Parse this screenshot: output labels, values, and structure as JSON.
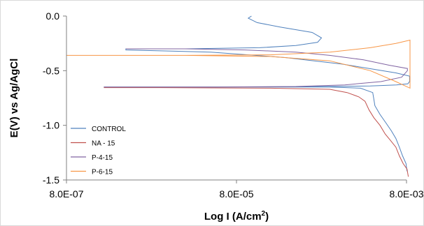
{
  "chart_data": {
    "type": "line",
    "title": "",
    "xlabel": "Log I (A/cm",
    "xlabel_sup": "2",
    "xlabel_end": ")",
    "ylabel": "E(V) vs Ag/AgCl",
    "x_scale": "log",
    "xlim": [
      8e-07,
      0.008
    ],
    "ylim": [
      -1.5,
      0.0
    ],
    "x_ticks": [
      8e-07,
      8e-05,
      0.008
    ],
    "x_tick_labels": [
      "8.0E-07",
      "8.0E-05",
      "8.0E-03"
    ],
    "y_ticks": [
      0.0,
      -0.5,
      -1.0,
      -1.5
    ],
    "y_tick_labels": [
      "0.0",
      "-0.5",
      "-1.0",
      "-1.5"
    ],
    "grid": false,
    "legend_position": "bottom-left",
    "series": [
      {
        "name": "CONTROL",
        "color": "#4f81bd",
        "points": [
          [
            0.00012,
            0.0
          ],
          [
            0.00011,
            -0.02
          ],
          [
            0.00014,
            -0.06
          ],
          [
            0.00026,
            -0.1
          ],
          [
            0.00062,
            -0.15
          ],
          [
            0.0008,
            -0.2
          ],
          [
            0.00072,
            -0.24
          ],
          [
            0.0004,
            -0.27
          ],
          [
            0.00015,
            -0.29
          ],
          [
            2e-05,
            -0.3
          ],
          [
            4e-06,
            -0.3
          ],
          [
            4e-06,
            -0.31
          ],
          [
            4e-05,
            -0.33
          ],
          [
            0.0003,
            -0.38
          ],
          [
            0.0014,
            -0.44
          ],
          [
            0.006,
            -0.52
          ],
          [
            0.0087,
            -0.55
          ],
          [
            0.0087,
            -0.6
          ],
          [
            0.0083,
            -0.62
          ],
          [
            0.0061,
            -0.63
          ],
          [
            0.003,
            -0.64
          ],
          [
            0.001,
            -0.645
          ],
          [
            0.0001,
            -0.65
          ],
          [
            1e-05,
            -0.65
          ],
          [
            2.2e-06,
            -0.65
          ],
          [
            1e-05,
            -0.65
          ],
          [
            0.0002,
            -0.65
          ],
          [
            0.001,
            -0.65
          ],
          [
            0.0023,
            -0.66
          ],
          [
            0.0032,
            -0.7
          ],
          [
            0.0033,
            -0.76
          ],
          [
            0.0034,
            -0.82
          ],
          [
            0.0039,
            -0.9
          ],
          [
            0.0046,
            -0.98
          ],
          [
            0.0053,
            -1.05
          ],
          [
            0.006,
            -1.12
          ],
          [
            0.0066,
            -1.2
          ],
          [
            0.0072,
            -1.28
          ],
          [
            0.0079,
            -1.35
          ],
          [
            0.0081,
            -1.42
          ]
        ]
      },
      {
        "name": "NA - 15",
        "color": "#c0504d",
        "points": [
          [
            2.2e-06,
            -0.655
          ],
          [
            1e-05,
            -0.655
          ],
          [
            0.0002,
            -0.66
          ],
          [
            0.001,
            -0.67
          ],
          [
            0.0016,
            -0.7
          ],
          [
            0.0022,
            -0.74
          ],
          [
            0.0026,
            -0.78
          ],
          [
            0.0029,
            -0.86
          ],
          [
            0.0033,
            -0.93
          ],
          [
            0.0039,
            -1.0
          ],
          [
            0.0045,
            -1.08
          ],
          [
            0.0052,
            -1.14
          ],
          [
            0.006,
            -1.2
          ],
          [
            0.0066,
            -1.28
          ],
          [
            0.0073,
            -1.35
          ],
          [
            0.0081,
            -1.4
          ],
          [
            0.0084,
            -1.47
          ]
        ]
      },
      {
        "name": "P-4-15",
        "color": "#8064a2",
        "points": [
          [
            4e-06,
            -0.3
          ],
          [
            2e-05,
            -0.3
          ],
          [
            0.0001,
            -0.31
          ],
          [
            0.0004,
            -0.33
          ],
          [
            0.001,
            -0.36
          ],
          [
            0.0025,
            -0.4
          ],
          [
            0.005,
            -0.45
          ],
          [
            0.0082,
            -0.48
          ],
          [
            0.0082,
            -0.5
          ],
          [
            0.007,
            -0.56
          ],
          [
            0.004,
            -0.6
          ],
          [
            0.0015,
            -0.63
          ],
          [
            0.0004,
            -0.645
          ],
          [
            5e-05,
            -0.65
          ],
          [
            2.2e-06,
            -0.65
          ]
        ]
      },
      {
        "name": "P-6-15",
        "color": "#f79646",
        "points": [
          [
            8e-07,
            -0.36
          ],
          [
            2e-05,
            -0.36
          ],
          [
            0.0002,
            -0.37
          ],
          [
            0.001,
            -0.41
          ],
          [
            0.003,
            -0.5
          ],
          [
            0.006,
            -0.6
          ],
          [
            0.0088,
            -0.66
          ],
          [
            0.0088,
            -0.22
          ],
          [
            0.006,
            -0.25
          ],
          [
            0.003,
            -0.29
          ],
          [
            0.001,
            -0.33
          ],
          [
            0.0002,
            -0.355
          ],
          [
            2e-05,
            -0.36
          ],
          [
            8e-07,
            -0.36
          ]
        ]
      }
    ]
  }
}
